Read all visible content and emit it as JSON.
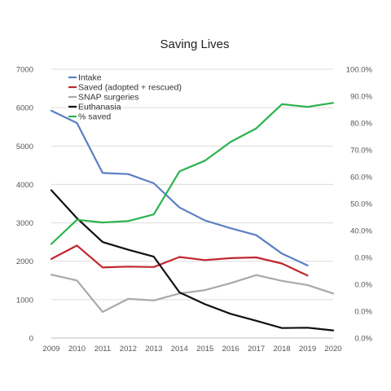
{
  "chart_data": {
    "type": "line",
    "title": "Saving Lives",
    "xlabel": "",
    "ylabel": "",
    "x": [
      2009,
      2010,
      2011,
      2012,
      2013,
      2014,
      2015,
      2016,
      2017,
      2018,
      2019,
      2020
    ],
    "x_tick_labels": [
      "2009",
      "2010",
      "2011",
      "2012",
      "2013",
      "2014",
      "2015",
      "2016",
      "2017",
      "2018",
      "2019",
      "2020"
    ],
    "ylim": [
      0,
      7000
    ],
    "y_tick_labels": [
      "0",
      "1000",
      "2000",
      "3000",
      "4000",
      "5000",
      "6000",
      "7000"
    ],
    "y2lim": [
      0,
      100
    ],
    "y2_tick_labels": [
      "0.0%",
      "0.0%",
      "0.0%",
      "0.0%",
      "40.0%",
      "50.0%",
      "60.0%",
      "70.0%",
      "80.0%",
      "90.0%",
      "100.0%"
    ],
    "grid": true,
    "legend_position": "top-left",
    "series": [
      {
        "name": "Intake",
        "axis": "left",
        "color": "#5b7fc4",
        "values": [
          5920,
          5600,
          4300,
          4270,
          4030,
          3400,
          3060,
          2860,
          2680,
          2200,
          1890,
          null
        ]
      },
      {
        "name": "Saved (adopted + rescued)",
        "axis": "left",
        "color": "#c0272d",
        "values": [
          2060,
          2410,
          1840,
          1860,
          1850,
          2110,
          2030,
          2080,
          2100,
          1940,
          1630,
          null
        ]
      },
      {
        "name": "SNAP surgeries",
        "axis": "left",
        "color": "#a9a9a9",
        "values": [
          1650,
          1500,
          680,
          1020,
          980,
          1160,
          1250,
          1430,
          1640,
          1490,
          1380,
          1160
        ]
      },
      {
        "name": "Euthanasia",
        "axis": "left",
        "color": "#111111",
        "values": [
          3850,
          3120,
          2500,
          2300,
          2120,
          1190,
          880,
          630,
          450,
          260,
          270,
          200
        ]
      },
      {
        "name": "% saved",
        "axis": "right",
        "color": "#2bb34d",
        "values": [
          35,
          44,
          43,
          43.5,
          46,
          62,
          66,
          73,
          78,
          87,
          86,
          87.5
        ]
      }
    ]
  }
}
